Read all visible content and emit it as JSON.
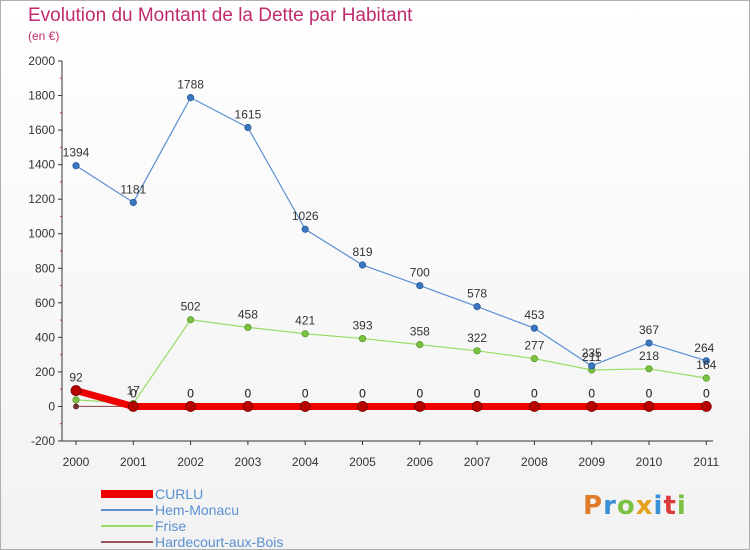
{
  "chart_data": {
    "type": "line",
    "title": "Evolution du Montant de la Dette par Habitant",
    "subtitle": "(en €)",
    "x": [
      "2000",
      "2001",
      "2002",
      "2003",
      "2004",
      "2005",
      "2006",
      "2007",
      "2008",
      "2009",
      "2010",
      "2011"
    ],
    "ylim": [
      -200,
      2000
    ],
    "yticks": [
      -200,
      0,
      200,
      400,
      600,
      800,
      1000,
      1200,
      1400,
      1600,
      1800,
      2000
    ],
    "grid": false,
    "legend_position": "bottom-left",
    "series": [
      {
        "name": "CURLU",
        "color": "#ee0000",
        "values": [
          92,
          0,
          0,
          0,
          0,
          0,
          0,
          0,
          0,
          0,
          0,
          0
        ],
        "labels": [
          "92",
          "0",
          "0",
          "0",
          "0",
          "0",
          "0",
          "0",
          "0",
          "0",
          "0",
          "0"
        ]
      },
      {
        "name": "Hem-Monacu",
        "color": "#5a8fd1",
        "values": [
          1394,
          1181,
          1788,
          1615,
          1026,
          819,
          700,
          578,
          453,
          235,
          367,
          264
        ],
        "labels": [
          "1394",
          "1181",
          "1788",
          "1615",
          "1026",
          "819",
          "700",
          "578",
          "453",
          "235",
          "367",
          "264"
        ]
      },
      {
        "name": "Frise",
        "color": "#99dd66",
        "values": [
          38,
          17,
          502,
          458,
          421,
          393,
          358,
          322,
          277,
          211,
          218,
          164
        ],
        "labels": [
          "",
          "17",
          "502",
          "458",
          "421",
          "393",
          "358",
          "322",
          "277",
          "211",
          "218",
          "164"
        ]
      },
      {
        "name": "Hardecourt-aux-Bois",
        "color": "#995555",
        "values": [
          0,
          0,
          0,
          0,
          0,
          0,
          0,
          0,
          0,
          0,
          0,
          0
        ],
        "labels": [
          "",
          "0",
          "0",
          "0",
          "0",
          "0",
          "0",
          "0",
          "0",
          "0",
          "0",
          "0"
        ]
      }
    ]
  },
  "branding": {
    "logo_text": "Proxiti",
    "logo_colors": [
      "#e07b2a",
      "#3a8fd6",
      "#7cc242",
      "#e2a21b",
      "#3a8fd6",
      "#d93a3a",
      "#7cc242"
    ]
  }
}
